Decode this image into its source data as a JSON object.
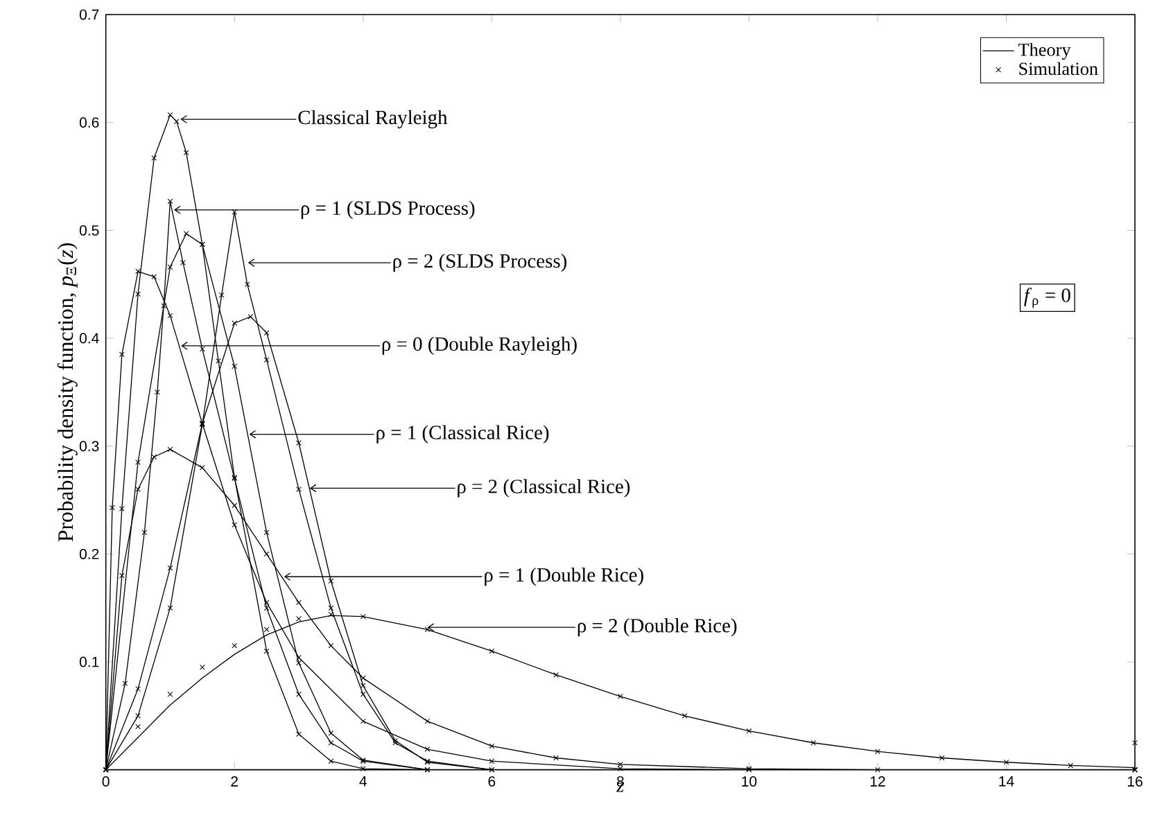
{
  "chart_data": {
    "type": "line",
    "xlabel": "z",
    "ylabel": "Probability density function, *p*$_{Ξ}$(*z*)",
    "xlim": [
      0,
      16
    ],
    "ylim": [
      0,
      0.7
    ],
    "xticks": [
      0,
      2,
      4,
      6,
      8,
      10,
      12,
      14,
      16
    ],
    "yticks": [
      0.1,
      0.2,
      0.3,
      0.4,
      0.5,
      0.6,
      0.7
    ],
    "legend": "top right",
    "series": [
      {
        "name": "Theory",
        "color": "#000000",
        "x": [
          0,
          0.25,
          0.5,
          0.75,
          1,
          1.1,
          1.25,
          1.5,
          1.75,
          2,
          2.5,
          3,
          3.5,
          4,
          5,
          16
        ],
        "values": [
          0,
          0.242,
          0.441,
          0.567,
          0.607,
          0.601,
          0.572,
          0.487,
          0.379,
          0.271,
          0.11,
          0.033,
          0.008,
          0.001,
          0,
          0
        ]
      },
      {
        "type": "scatter",
        "name": "Simulation",
        "marker": "cross",
        "color": "#000000",
        "x": [
          0,
          0.25,
          0.5,
          0.75,
          1,
          1.1,
          1.25,
          1.5,
          1.75,
          2,
          2.5,
          3,
          3.5,
          4,
          5,
          16
        ],
        "values": [
          0,
          0.242,
          0.441,
          0.567,
          0.607,
          0.601,
          0.572,
          0.487,
          0.379,
          0.271,
          0.11,
          0.033,
          0.008,
          0.001,
          0,
          0
        ]
      },
      {
        "color": "#000000",
        "x": [
          0,
          0.3,
          0.6,
          0.8,
          0.9,
          1.0,
          1.2,
          1.5,
          2,
          2.5,
          3,
          3.5,
          4,
          5,
          16
        ],
        "values": [
          0,
          0.08,
          0.22,
          0.35,
          0.43,
          0.527,
          0.47,
          0.39,
          0.27,
          0.15,
          0.07,
          0.025,
          0.008,
          0,
          0
        ]
      },
      {
        "type": "scatter",
        "marker": "cross",
        "color": "#000000",
        "x": [
          0,
          0.3,
          0.6,
          0.8,
          0.9,
          1.0,
          1.2,
          1.5,
          2,
          2.5,
          3,
          3.5,
          4,
          5,
          16
        ],
        "values": [
          0,
          0.08,
          0.22,
          0.35,
          0.43,
          0.527,
          0.47,
          0.39,
          0.27,
          0.15,
          0.07,
          0.025,
          0.008,
          0,
          0
        ]
      },
      {
        "color": "#000000",
        "x": [
          0,
          0.5,
          1,
          1.5,
          1.8,
          2,
          2.2,
          2.5,
          3,
          3.5,
          4,
          4.5,
          5,
          6,
          16
        ],
        "values": [
          0,
          0.05,
          0.15,
          0.32,
          0.44,
          0.517,
          0.45,
          0.38,
          0.26,
          0.15,
          0.07,
          0.025,
          0.008,
          0,
          0
        ]
      },
      {
        "type": "scatter",
        "marker": "cross",
        "color": "#000000",
        "x": [
          0,
          0.5,
          1,
          1.5,
          1.8,
          2,
          2.2,
          2.5,
          3,
          3.5,
          4,
          4.5,
          5,
          6,
          16
        ],
        "values": [
          0,
          0.05,
          0.15,
          0.32,
          0.44,
          0.517,
          0.45,
          0.38,
          0.26,
          0.15,
          0.07,
          0.025,
          0.008,
          0,
          0
        ]
      },
      {
        "color": "#000000",
        "x": [
          0,
          0.1,
          0.25,
          0.5,
          0.75,
          1,
          1.5,
          2,
          2.5,
          3,
          4,
          5,
          6,
          8,
          10,
          16
        ],
        "values": [
          0,
          0.243,
          0.385,
          0.462,
          0.457,
          0.421,
          0.321,
          0.227,
          0.155,
          0.104,
          0.045,
          0.019,
          0.008,
          0.001,
          0,
          0
        ]
      },
      {
        "type": "scatter",
        "marker": "cross",
        "color": "#000000",
        "x": [
          0,
          0.1,
          0.25,
          0.5,
          0.75,
          1,
          1.5,
          2,
          2.5,
          3,
          4,
          5,
          6,
          8,
          10,
          16
        ],
        "values": [
          0,
          0.243,
          0.385,
          0.462,
          0.457,
          0.421,
          0.321,
          0.227,
          0.155,
          0.104,
          0.045,
          0.019,
          0.008,
          0.001,
          0,
          0
        ]
      },
      {
        "color": "#000000",
        "x": [
          0,
          0.5,
          1,
          1.25,
          1.5,
          2,
          2.5,
          3,
          3.5,
          4,
          5,
          16
        ],
        "values": [
          0,
          0.285,
          0.466,
          0.497,
          0.487,
          0.374,
          0.22,
          0.099,
          0.034,
          0.009,
          0,
          0
        ]
      },
      {
        "type": "scatter",
        "marker": "cross",
        "color": "#000000",
        "x": [
          0,
          0.5,
          1,
          1.25,
          1.5,
          2,
          2.5,
          3,
          3.5,
          4,
          5,
          16
        ],
        "values": [
          0,
          0.285,
          0.466,
          0.497,
          0.487,
          0.374,
          0.22,
          0.099,
          0.034,
          0.009,
          0,
          0
        ]
      },
      {
        "color": "#000000",
        "x": [
          0,
          0.5,
          1,
          1.5,
          2,
          2.25,
          2.5,
          3,
          3.5,
          4,
          4.5,
          5,
          6,
          16
        ],
        "values": [
          0,
          0.075,
          0.187,
          0.321,
          0.414,
          0.42,
          0.405,
          0.303,
          0.175,
          0.078,
          0.027,
          0.007,
          0,
          0
        ]
      },
      {
        "type": "scatter",
        "marker": "cross",
        "color": "#000000",
        "x": [
          0,
          0.5,
          1,
          1.5,
          2,
          2.25,
          2.5,
          3,
          3.5,
          4,
          4.5,
          5,
          6,
          16
        ],
        "values": [
          0,
          0.075,
          0.187,
          0.321,
          0.414,
          0.42,
          0.405,
          0.303,
          0.175,
          0.078,
          0.027,
          0.007,
          0,
          0
        ]
      },
      {
        "color": "#000000",
        "x": [
          0,
          0.25,
          0.5,
          0.75,
          1,
          1.5,
          2,
          2.5,
          3,
          3.5,
          4,
          5,
          6,
          7,
          8,
          10,
          12,
          16
        ],
        "values": [
          0,
          0.18,
          0.26,
          0.29,
          0.297,
          0.28,
          0.245,
          0.2,
          0.155,
          0.115,
          0.085,
          0.045,
          0.022,
          0.011,
          0.005,
          0.001,
          0,
          0
        ]
      },
      {
        "type": "scatter",
        "marker": "cross",
        "color": "#000000",
        "x": [
          0,
          0.25,
          0.5,
          0.75,
          1,
          1.5,
          2,
          2.5,
          3,
          3.5,
          4,
          5,
          6,
          7,
          8,
          10,
          12,
          16
        ],
        "values": [
          0,
          0.18,
          0.26,
          0.29,
          0.297,
          0.28,
          0.245,
          0.2,
          0.155,
          0.115,
          0.085,
          0.045,
          0.022,
          0.011,
          0.005,
          0.001,
          0,
          0
        ]
      },
      {
        "color": "#000000",
        "x": [
          0,
          0.5,
          1,
          1.5,
          2,
          2.5,
          3,
          3.5,
          4,
          5,
          6,
          7,
          8,
          9,
          10,
          11,
          12,
          13,
          14,
          15,
          16
        ],
        "values": [
          0,
          0.03,
          0.06,
          0.085,
          0.107,
          0.125,
          0.137,
          0.143,
          0.142,
          0.13,
          0.11,
          0.088,
          0.068,
          0.05,
          0.036,
          0.025,
          0.017,
          0.011,
          0.007,
          0.004,
          0.002
        ]
      },
      {
        "type": "scatter",
        "marker": "cross",
        "color": "#000000",
        "x": [
          0,
          0.5,
          1,
          1.5,
          2,
          2.5,
          3,
          3.5,
          4,
          5,
          6,
          7,
          8,
          9,
          10,
          11,
          12,
          13,
          14,
          15,
          16
        ],
        "values": [
          0,
          0.04,
          0.07,
          0.095,
          0.115,
          0.13,
          0.14,
          0.144,
          0.142,
          0.13,
          0.11,
          0.088,
          0.068,
          0.05,
          0.036,
          0.025,
          0.017,
          0.011,
          0.007,
          0.004,
          0.025
        ]
      }
    ],
    "annotations": [
      {
        "text": "Classical Rayleigh",
        "x": 1.16,
        "y": 0.603
      },
      {
        "text": "ρ = 1 (SLDS Process)",
        "x": 1.06,
        "y": 0.519
      },
      {
        "text": "ρ = 2 (SLDS Process)",
        "x": 2.21,
        "y": 0.47
      },
      {
        "text": "ρ = 0 (Double Rayleigh)",
        "x": 1.17,
        "y": 0.393
      },
      {
        "text": "ρ = 1 (Classical Rice)",
        "x": 2.23,
        "y": 0.311
      },
      {
        "text": "ρ = 2 (Classical Rice)",
        "x": 3.17,
        "y": 0.261
      },
      {
        "text": "ρ = 1 (Double Rice)",
        "x": 2.77,
        "y": 0.179
      },
      {
        "text": "ρ = 2 (Double Rice)",
        "x": 5.0,
        "y": 0.132
      },
      "*f*$_{ρ}$ = 0"
    ]
  }
}
